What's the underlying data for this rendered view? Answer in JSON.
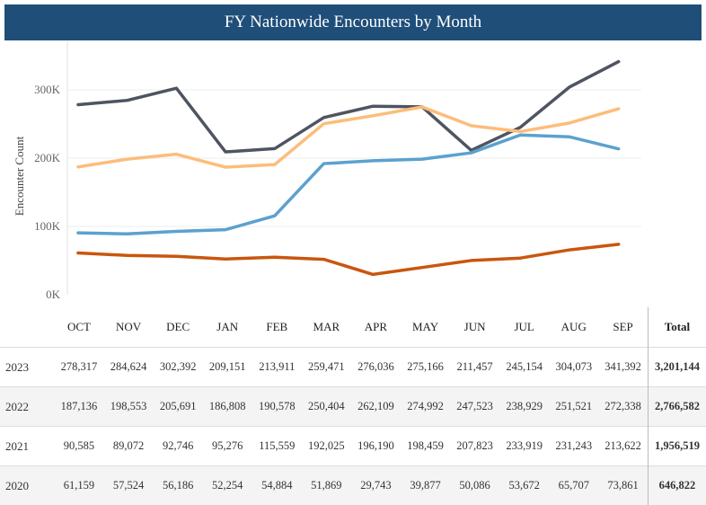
{
  "title": "FY Nationwide Encounters by Month",
  "colors": {
    "header_bg": "#1f4e79",
    "2023": "#4e5561",
    "2022": "#fcbd7a",
    "2021": "#5ba1cf",
    "2020": "#c9560e"
  },
  "chart_data": {
    "type": "line",
    "title": "FY Nationwide Encounters by Month",
    "ylabel": "Encounter Count",
    "xlabel": "",
    "ylim": [
      0,
      350000
    ],
    "yticks": [
      {
        "value": 0,
        "label": "0K"
      },
      {
        "value": 100000,
        "label": "100K"
      },
      {
        "value": 200000,
        "label": "200K"
      },
      {
        "value": 300000,
        "label": "300K"
      }
    ],
    "grid": true,
    "categories": [
      "OCT",
      "NOV",
      "DEC",
      "JAN",
      "FEB",
      "MAR",
      "APR",
      "MAY",
      "JUN",
      "JUL",
      "AUG",
      "SEP"
    ],
    "series": [
      {
        "name": "2023",
        "values": [
          278317,
          284624,
          302392,
          209151,
          213911,
          259471,
          276036,
          275166,
          211457,
          245154,
          304073,
          341392
        ]
      },
      {
        "name": "2022",
        "values": [
          187136,
          198553,
          205691,
          186808,
          190578,
          250404,
          262109,
          274992,
          247523,
          238929,
          251521,
          272338
        ]
      },
      {
        "name": "2021",
        "values": [
          90585,
          89072,
          92746,
          95276,
          115559,
          192025,
          196190,
          198459,
          207823,
          233919,
          231243,
          213622
        ]
      },
      {
        "name": "2020",
        "values": [
          61159,
          57524,
          56186,
          52254,
          54884,
          51869,
          29743,
          39877,
          50086,
          53672,
          65707,
          73861
        ]
      }
    ]
  },
  "table": {
    "total_header": "Total",
    "rows": [
      {
        "year": "2023",
        "cells": [
          "278,317",
          "284,624",
          "302,392",
          "209,151",
          "213,911",
          "259,471",
          "276,036",
          "275,166",
          "211,457",
          "245,154",
          "304,073",
          "341,392"
        ],
        "total": "3,201,144"
      },
      {
        "year": "2022",
        "cells": [
          "187,136",
          "198,553",
          "205,691",
          "186,808",
          "190,578",
          "250,404",
          "262,109",
          "274,992",
          "247,523",
          "238,929",
          "251,521",
          "272,338"
        ],
        "total": "2,766,582"
      },
      {
        "year": "2021",
        "cells": [
          "90,585",
          "89,072",
          "92,746",
          "95,276",
          "115,559",
          "192,025",
          "196,190",
          "198,459",
          "207,823",
          "233,919",
          "231,243",
          "213,622"
        ],
        "total": "1,956,519"
      },
      {
        "year": "2020",
        "cells": [
          "61,159",
          "57,524",
          "56,186",
          "52,254",
          "54,884",
          "51,869",
          "29,743",
          "39,877",
          "50,086",
          "53,672",
          "65,707",
          "73,861"
        ],
        "total": "646,822"
      }
    ]
  }
}
